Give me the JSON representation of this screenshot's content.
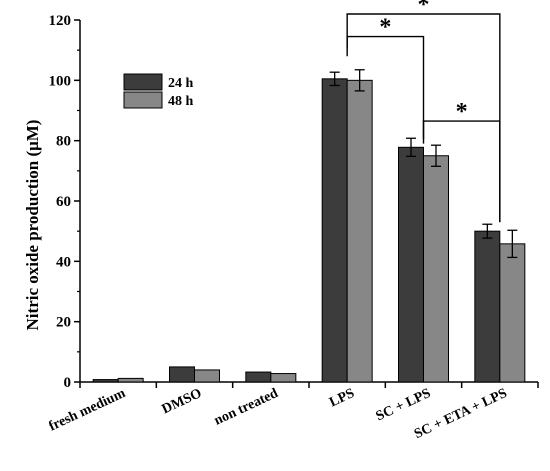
{
  "chart_data": {
    "type": "bar",
    "ylabel": "Nitric oxide production (μM)",
    "xlabel": "",
    "ylim": [
      0,
      120
    ],
    "yticks": [
      0,
      20,
      40,
      60,
      80,
      100,
      120
    ],
    "categories": [
      "fresh medium",
      "DMSO",
      "non treated",
      "LPS",
      "SC + LPS",
      "SC + ETA + LPS"
    ],
    "series": [
      {
        "name": "24 h",
        "color": "#3c3c3c",
        "values": [
          0.8,
          5.0,
          3.3,
          100.5,
          77.8,
          50.0
        ],
        "errors": [
          0,
          0,
          0,
          2.2,
          3.0,
          2.3
        ]
      },
      {
        "name": "48 h",
        "color": "#878787",
        "values": [
          1.2,
          4.0,
          2.8,
          100.0,
          75.0,
          45.8
        ],
        "errors": [
          0,
          0,
          0,
          3.5,
          3.5,
          4.5
        ]
      }
    ],
    "legend": {
      "placement": "top-left"
    },
    "significance": [
      {
        "from_category": "LPS",
        "to_category": "SC + LPS",
        "label": "*"
      },
      {
        "from_category": "LPS",
        "to_category": "SC + ETA + LPS",
        "label": "*"
      },
      {
        "from_category": "SC + LPS",
        "to_category": "SC + ETA + LPS",
        "label": "*"
      }
    ],
    "grid": false
  }
}
